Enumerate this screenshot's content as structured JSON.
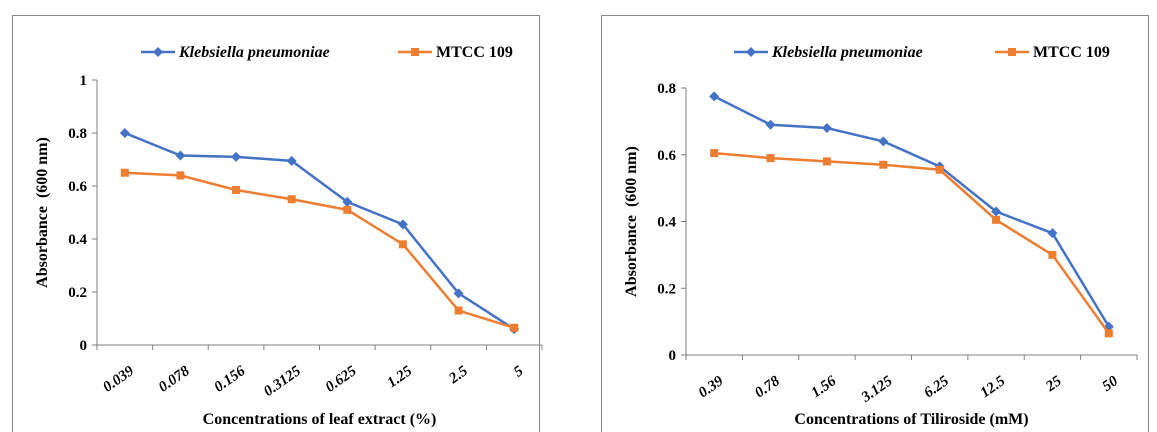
{
  "chart_data": [
    {
      "type": "line",
      "xlabel": "Concentrations of leaf extract (%)",
      "ylabel": "Absorbance  (600 nm)",
      "categories": [
        "0.039",
        "0.078",
        "0.156",
        "0.3125",
        "0.625",
        "1.25",
        "2.5",
        "5"
      ],
      "ylim": [
        0,
        1
      ],
      "yticks": [
        "0",
        "0.2",
        "0.4",
        "0.6",
        "0.8",
        "1"
      ],
      "grid": false,
      "legend_position": "top",
      "series": [
        {
          "name": "Klebsiella pneumoniae",
          "color": "#4472C4",
          "marker": "diamond",
          "values": [
            0.8,
            0.715,
            0.71,
            0.695,
            0.54,
            0.455,
            0.195,
            0.06
          ]
        },
        {
          "name": "MTCC 109",
          "color": "#ED7D31",
          "marker": "square",
          "values": [
            0.65,
            0.64,
            0.585,
            0.55,
            0.51,
            0.38,
            0.13,
            0.065
          ]
        }
      ]
    },
    {
      "type": "line",
      "xlabel": "Concentrations of Tiliroside (mM)",
      "ylabel": "Absorbance  (600 nm)",
      "categories": [
        "0.39",
        "0.78",
        "1.56",
        "3.125",
        "6.25",
        "12.5",
        "25",
        "50"
      ],
      "ylim": [
        0,
        0.8
      ],
      "yticks": [
        "0",
        "0.2",
        "0.4",
        "0.6",
        "0.8"
      ],
      "grid": false,
      "legend_position": "top",
      "series": [
        {
          "name": "Klebsiella pneumoniae",
          "color": "#4472C4",
          "marker": "diamond",
          "values": [
            0.775,
            0.69,
            0.68,
            0.64,
            0.565,
            0.43,
            0.365,
            0.085
          ]
        },
        {
          "name": "MTCC 109",
          "color": "#ED7D31",
          "marker": "square",
          "values": [
            0.605,
            0.59,
            0.58,
            0.57,
            0.555,
            0.405,
            0.3,
            0.065
          ]
        }
      ]
    }
  ]
}
